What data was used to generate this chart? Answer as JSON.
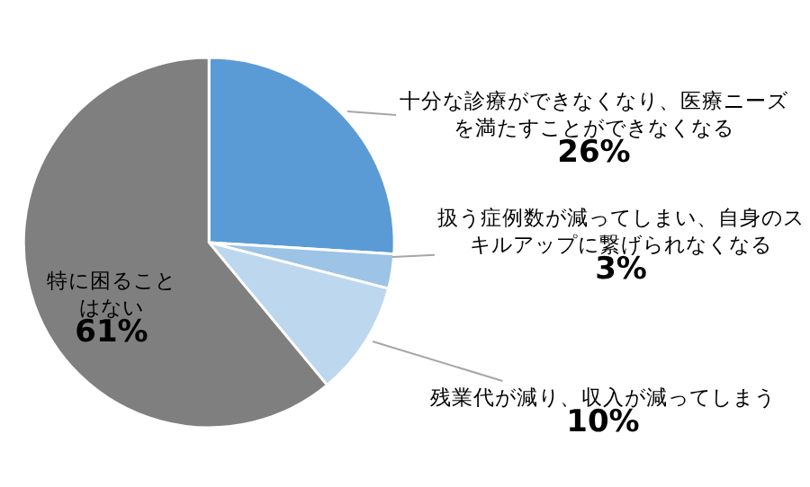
{
  "chart_data": {
    "type": "pie",
    "categories": [
      "十分な診療ができなくなり、医療ニーズを満たすことができなくなる",
      "扱う症例数が減ってしまい、自身のスキルアップに繋げられなくなる",
      "残業代が減り、収入が減ってしまう",
      "特に困ることはない"
    ],
    "values": [
      26,
      3,
      10,
      61
    ],
    "value_labels": [
      "26%",
      "3%",
      "10%",
      "61%"
    ],
    "colors": [
      "#5b9bd5",
      "#9dc3e6",
      "#bdd7ee",
      "#7f7f7f"
    ],
    "legend": false
  }
}
